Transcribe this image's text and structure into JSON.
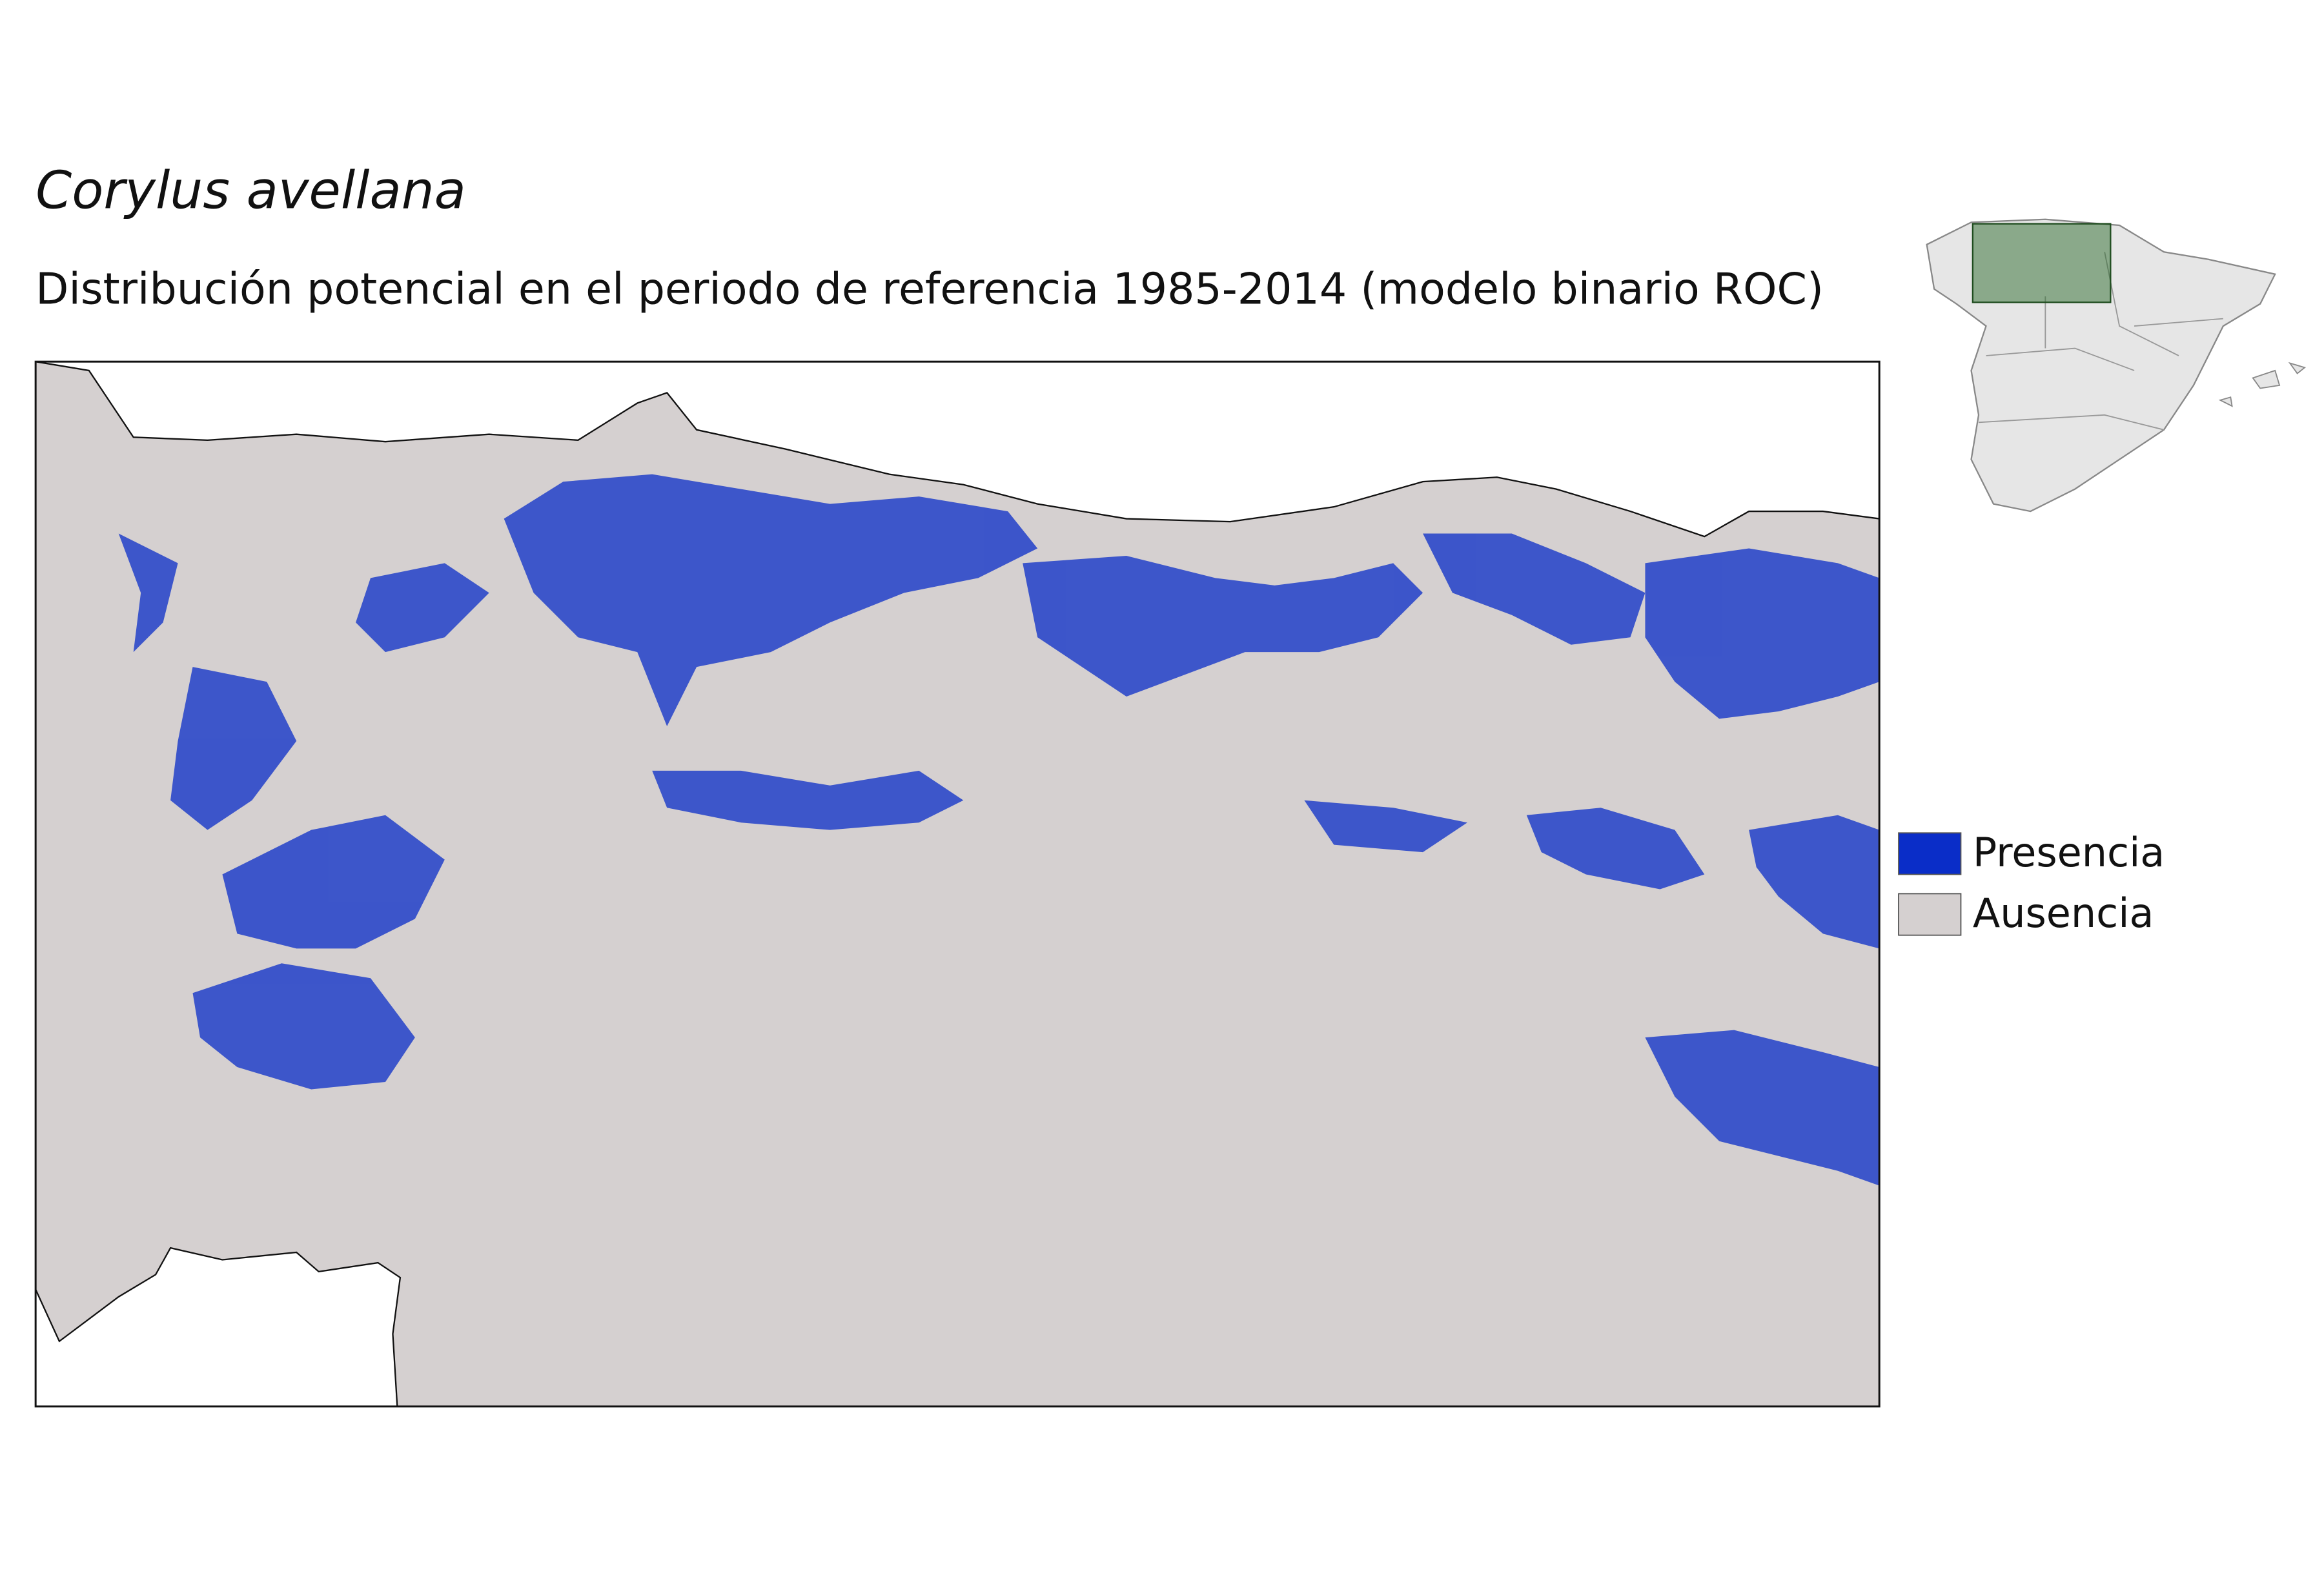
{
  "title": "Corylus avellana",
  "subtitle": "Distribución potencial en el periodo de referencia 1985-2014 (modelo binario ROC)",
  "legend": [
    {
      "label": "Presencia",
      "color": "#0a2dc8"
    },
    {
      "label": "Ausencia",
      "color": "#d5d0d0"
    }
  ]
}
